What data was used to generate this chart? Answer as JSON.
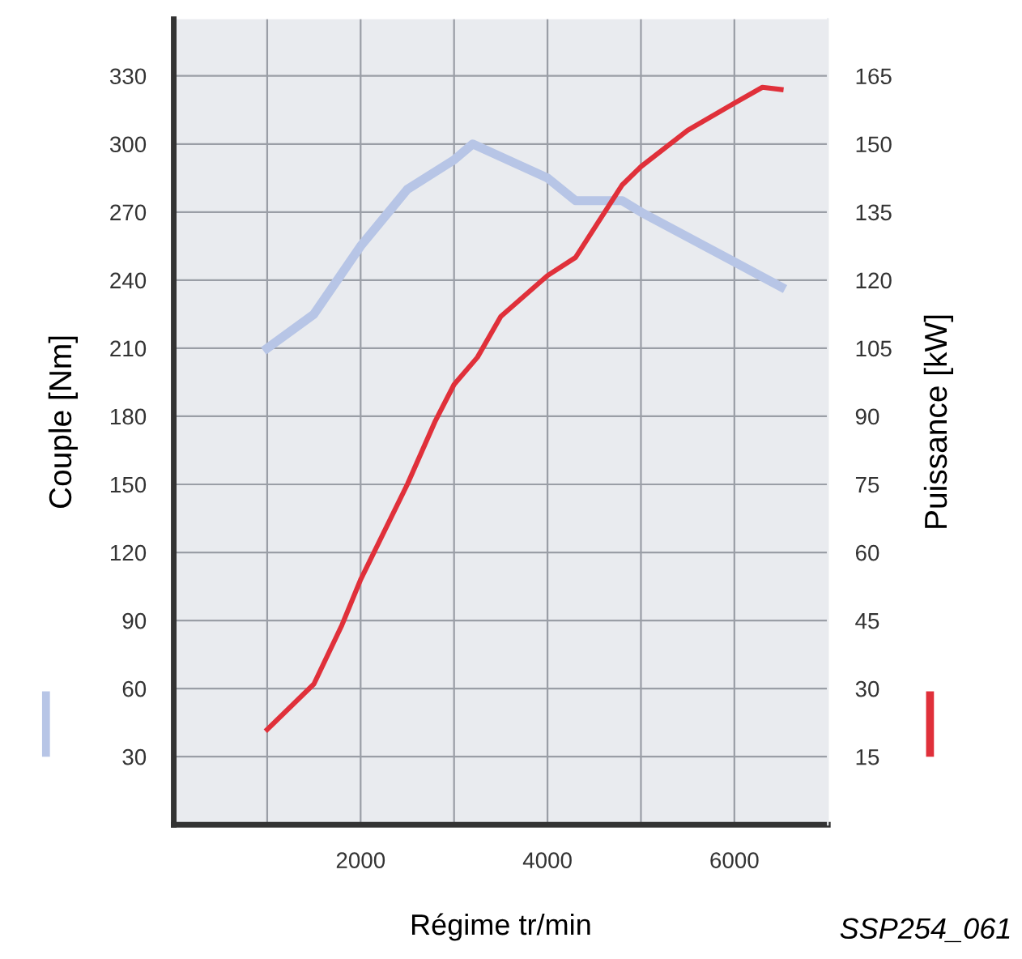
{
  "chart_data": {
    "type": "line",
    "xlabel": "Régime tr/min",
    "ylabel": "Couple [Nm]",
    "y2label": "Puissance [kW]",
    "annotations": [
      "SSP254_061"
    ],
    "series": [
      {
        "color": "#b7c5e6",
        "x": [
          1000,
          1500,
          2000,
          2500,
          3000,
          3200,
          4000,
          4300,
          4800,
          5000,
          6000,
          6500
        ],
        "values": [
          210,
          225,
          255,
          280,
          293,
          300,
          285,
          275,
          275,
          270,
          248,
          237
        ]
      },
      {
        "color": "#e0303a",
        "axis": "y2",
        "x": [
          1000,
          1500,
          1800,
          2000,
          2500,
          2800,
          3000,
          3250,
          3500,
          4000,
          4300,
          4800,
          5000,
          5500,
          6000,
          6300,
          6500
        ],
        "values": [
          21,
          31,
          44,
          54,
          75,
          89,
          97,
          103,
          112,
          121,
          125,
          141,
          145,
          153,
          159,
          162.5,
          162
        ]
      }
    ],
    "xlim": [
      0,
      7000
    ],
    "xticks": [
      {
        "value": 1000,
        "label": null
      },
      2000,
      {
        "value": 3000,
        "label": null
      },
      4000,
      {
        "value": 5000,
        "label": null
      },
      6000
    ],
    "ylim": [
      0,
      355
    ],
    "yticks": [
      30,
      60,
      90,
      120,
      150,
      180,
      210,
      240,
      270,
      300,
      330
    ],
    "y2lim": [
      0,
      177.5
    ],
    "y2ticks": [
      15,
      30,
      45,
      60,
      75,
      90,
      105,
      120,
      135,
      150,
      165
    ],
    "grid": true,
    "line_style": "solid",
    "marker": "none"
  }
}
